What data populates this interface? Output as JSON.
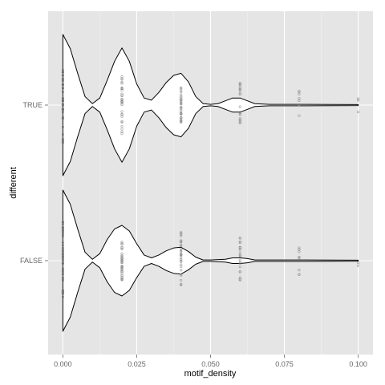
{
  "chart_data": {
    "type": "violin",
    "xlabel": "motif_density",
    "ylabel": "different",
    "x_ticks": [
      "0.000",
      "0.025",
      "0.050",
      "0.075",
      "0.100"
    ],
    "x_tick_values": [
      0,
      0.025,
      0.05,
      0.075,
      0.1
    ],
    "xlim": [
      -0.005,
      0.105
    ],
    "categories": [
      "FALSE",
      "TRUE"
    ],
    "grid": true,
    "background": "#e5e5e5",
    "grid_color": "#ffffff",
    "point_color": "#808080",
    "violin_fill": "#ffffff",
    "violin_stroke": "#000000",
    "violins": [
      {
        "category": "TRUE",
        "density_profile": [
          {
            "x": 0.0,
            "half_width": 1.0
          },
          {
            "x": 0.0025,
            "half_width": 0.8
          },
          {
            "x": 0.005,
            "half_width": 0.45
          },
          {
            "x": 0.0075,
            "half_width": 0.12
          },
          {
            "x": 0.01,
            "half_width": 0.02
          },
          {
            "x": 0.0125,
            "half_width": 0.1
          },
          {
            "x": 0.015,
            "half_width": 0.35
          },
          {
            "x": 0.0175,
            "half_width": 0.62
          },
          {
            "x": 0.02,
            "half_width": 0.81
          },
          {
            "x": 0.0225,
            "half_width": 0.62
          },
          {
            "x": 0.025,
            "half_width": 0.3
          },
          {
            "x": 0.0275,
            "half_width": 0.1
          },
          {
            "x": 0.03,
            "half_width": 0.07
          },
          {
            "x": 0.0325,
            "half_width": 0.18
          },
          {
            "x": 0.035,
            "half_width": 0.32
          },
          {
            "x": 0.0375,
            "half_width": 0.42
          },
          {
            "x": 0.04,
            "half_width": 0.45
          },
          {
            "x": 0.0425,
            "half_width": 0.33
          },
          {
            "x": 0.045,
            "half_width": 0.12
          },
          {
            "x": 0.0475,
            "half_width": 0.02
          },
          {
            "x": 0.05,
            "half_width": 0.01
          },
          {
            "x": 0.0525,
            "half_width": 0.02
          },
          {
            "x": 0.055,
            "half_width": 0.06
          },
          {
            "x": 0.0575,
            "half_width": 0.1
          },
          {
            "x": 0.06,
            "half_width": 0.1
          },
          {
            "x": 0.0625,
            "half_width": 0.06
          },
          {
            "x": 0.065,
            "half_width": 0.02
          },
          {
            "x": 0.07,
            "half_width": 0.01
          },
          {
            "x": 0.08,
            "half_width": 0.01
          },
          {
            "x": 0.1,
            "half_width": 0.0
          }
        ],
        "points": [
          {
            "x": 0.0,
            "count": 38
          },
          {
            "x": 0.02,
            "count": 32
          },
          {
            "x": 0.04,
            "count": 30
          },
          {
            "x": 0.06,
            "count": 18
          },
          {
            "x": 0.08,
            "count": 8
          },
          {
            "x": 0.1,
            "count": 3
          }
        ]
      },
      {
        "category": "FALSE",
        "density_profile": [
          {
            "x": 0.0,
            "half_width": 1.0
          },
          {
            "x": 0.0025,
            "half_width": 0.8
          },
          {
            "x": 0.005,
            "half_width": 0.45
          },
          {
            "x": 0.0075,
            "half_width": 0.12
          },
          {
            "x": 0.01,
            "half_width": 0.02
          },
          {
            "x": 0.0125,
            "half_width": 0.1
          },
          {
            "x": 0.015,
            "half_width": 0.3
          },
          {
            "x": 0.0175,
            "half_width": 0.45
          },
          {
            "x": 0.02,
            "half_width": 0.5
          },
          {
            "x": 0.0225,
            "half_width": 0.42
          },
          {
            "x": 0.025,
            "half_width": 0.24
          },
          {
            "x": 0.0275,
            "half_width": 0.08
          },
          {
            "x": 0.03,
            "half_width": 0.04
          },
          {
            "x": 0.0325,
            "half_width": 0.08
          },
          {
            "x": 0.035,
            "half_width": 0.14
          },
          {
            "x": 0.0375,
            "half_width": 0.18
          },
          {
            "x": 0.04,
            "half_width": 0.19
          },
          {
            "x": 0.0425,
            "half_width": 0.13
          },
          {
            "x": 0.045,
            "half_width": 0.05
          },
          {
            "x": 0.0475,
            "half_width": 0.01
          },
          {
            "x": 0.05,
            "half_width": 0.01
          },
          {
            "x": 0.055,
            "half_width": 0.02
          },
          {
            "x": 0.0575,
            "half_width": 0.04
          },
          {
            "x": 0.06,
            "half_width": 0.04
          },
          {
            "x": 0.0625,
            "half_width": 0.03
          },
          {
            "x": 0.065,
            "half_width": 0.01
          },
          {
            "x": 0.08,
            "half_width": 0.01
          },
          {
            "x": 0.1,
            "half_width": 0.0
          }
        ],
        "points": [
          {
            "x": 0.0,
            "count": 42
          },
          {
            "x": 0.02,
            "count": 34
          },
          {
            "x": 0.04,
            "count": 28
          },
          {
            "x": 0.06,
            "count": 20
          },
          {
            "x": 0.08,
            "count": 8
          },
          {
            "x": 0.1,
            "count": 2
          }
        ]
      }
    ]
  }
}
